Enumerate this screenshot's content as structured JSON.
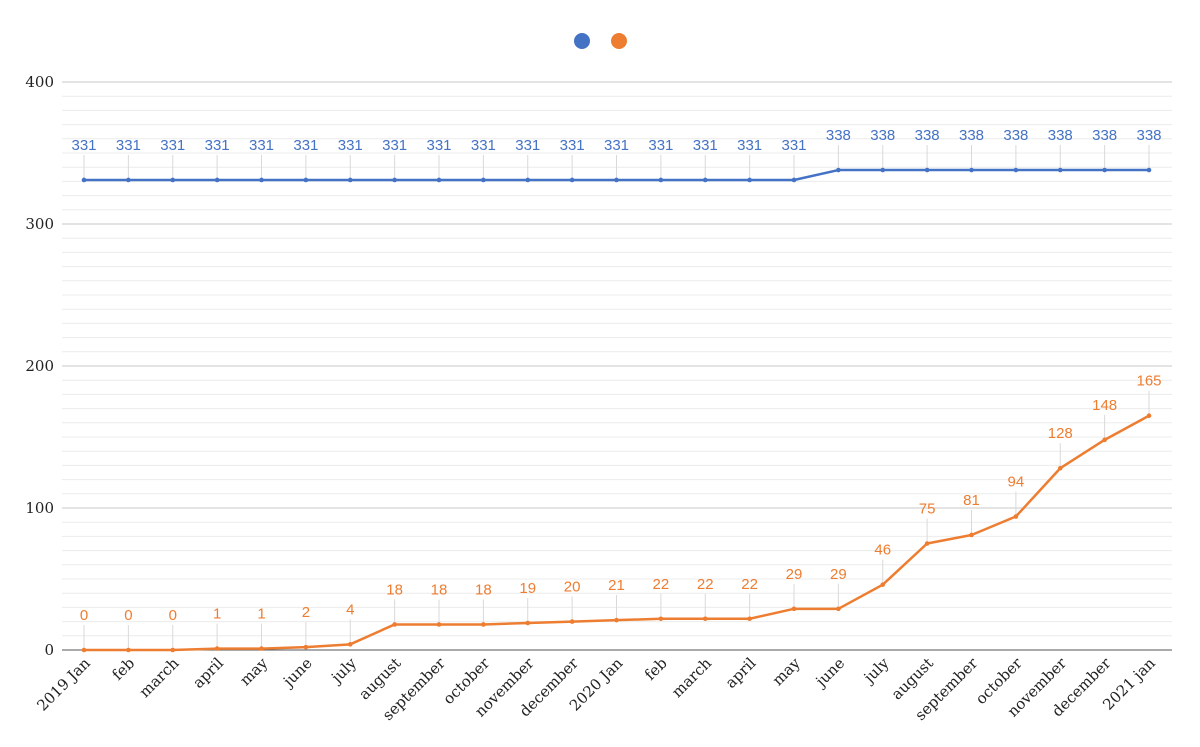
{
  "chart_data": {
    "type": "line",
    "categories": [
      "2019 Jan",
      "feb",
      "march",
      "april",
      "may",
      "june",
      "july",
      "august",
      "september",
      "october",
      "november",
      "december",
      "2020 Jan",
      "feb",
      "march",
      "april",
      "may",
      "june",
      "july",
      "august",
      "september",
      "october",
      "november",
      "december",
      "2021 jan"
    ],
    "series": [
      {
        "color": "#4472c4",
        "values": [
          331,
          331,
          331,
          331,
          331,
          331,
          331,
          331,
          331,
          331,
          331,
          331,
          331,
          331,
          331,
          331,
          331,
          338,
          338,
          338,
          338,
          338,
          338,
          338,
          338
        ]
      },
      {
        "color": "#ed7d31",
        "values": [
          0,
          0,
          0,
          1,
          1,
          2,
          4,
          18,
          18,
          18,
          19,
          20,
          21,
          22,
          22,
          22,
          29,
          29,
          46,
          75,
          81,
          94,
          128,
          148,
          165
        ]
      }
    ],
    "yticks": [
      0,
      100,
      200,
      300,
      400
    ],
    "ylim": [
      0,
      400
    ],
    "grid": true,
    "minor_grid": true,
    "legend": "top-center",
    "data_labels": true
  }
}
